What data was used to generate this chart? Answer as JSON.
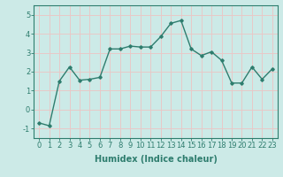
{
  "x": [
    0,
    1,
    2,
    3,
    4,
    5,
    6,
    7,
    8,
    9,
    10,
    11,
    12,
    13,
    14,
    15,
    16,
    17,
    18,
    19,
    20,
    21,
    22,
    23
  ],
  "y": [
    -0.7,
    -0.85,
    1.5,
    2.25,
    1.55,
    1.6,
    1.7,
    3.2,
    3.2,
    3.35,
    3.3,
    3.3,
    3.85,
    4.55,
    4.7,
    3.2,
    2.85,
    3.05,
    2.6,
    1.4,
    1.4,
    2.25,
    1.6,
    2.15
  ],
  "line_color": "#2e7d6e",
  "marker": "D",
  "marker_size": 1.8,
  "line_width": 1.0,
  "bg_color": "#cceae7",
  "grid_color": "#e8c8c8",
  "tick_color": "#2e7d6e",
  "label_color": "#2e7d6e",
  "xlabel": "Humidex (Indice chaleur)",
  "ylim": [
    -1.5,
    5.5
  ],
  "xlim": [
    -0.5,
    23.5
  ],
  "yticks": [
    -1,
    0,
    1,
    2,
    3,
    4,
    5
  ],
  "xticks": [
    0,
    1,
    2,
    3,
    4,
    5,
    6,
    7,
    8,
    9,
    10,
    11,
    12,
    13,
    14,
    15,
    16,
    17,
    18,
    19,
    20,
    21,
    22,
    23
  ],
  "xtick_labels": [
    "0",
    "1",
    "2",
    "3",
    "4",
    "5",
    "6",
    "7",
    "8",
    "9",
    "10",
    "11",
    "12",
    "13",
    "14",
    "15",
    "16",
    "17",
    "18",
    "19",
    "20",
    "21",
    "22",
    "23"
  ],
  "xlabel_fontsize": 7.0,
  "tick_fontsize": 6.0,
  "spine_color": "#2e7d6e"
}
